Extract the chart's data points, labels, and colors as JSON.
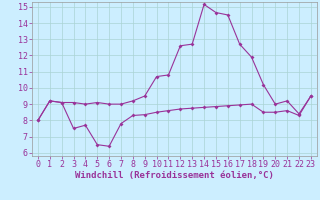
{
  "xlabel": "Windchill (Refroidissement éolien,°C)",
  "background_color": "#cceeff",
  "line_color": "#993399",
  "grid_color": "#aad4d4",
  "xlim": [
    -0.5,
    23.5
  ],
  "ylim": [
    5.8,
    15.3
  ],
  "xticks": [
    0,
    1,
    2,
    3,
    4,
    5,
    6,
    7,
    8,
    9,
    10,
    11,
    12,
    13,
    14,
    15,
    16,
    17,
    18,
    19,
    20,
    21,
    22,
    23
  ],
  "yticks": [
    6,
    7,
    8,
    9,
    10,
    11,
    12,
    13,
    14,
    15
  ],
  "x": [
    0,
    1,
    2,
    3,
    4,
    5,
    6,
    7,
    8,
    9,
    10,
    11,
    12,
    13,
    14,
    15,
    16,
    17,
    18,
    19,
    20,
    21,
    22,
    23
  ],
  "line_bottom": [
    8.0,
    9.2,
    9.1,
    7.5,
    7.7,
    6.5,
    6.4,
    7.8,
    8.3,
    8.35,
    8.5,
    8.6,
    8.7,
    8.75,
    8.8,
    8.85,
    8.9,
    8.95,
    9.0,
    8.5,
    8.5,
    8.6,
    8.3,
    9.5
  ],
  "line_top": [
    8.0,
    9.2,
    9.1,
    9.1,
    9.0,
    9.1,
    9.0,
    9.0,
    9.2,
    9.5,
    10.7,
    10.8,
    12.6,
    12.7,
    15.15,
    14.65,
    14.5,
    12.7,
    11.9,
    10.2,
    9.0,
    9.2,
    8.4,
    9.5
  ],
  "xlabel_fontsize": 6.5,
  "tick_fontsize": 6.0
}
